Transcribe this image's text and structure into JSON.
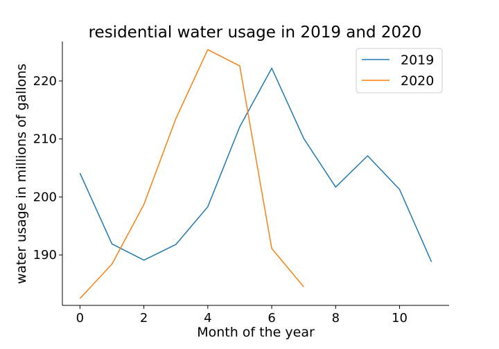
{
  "chart_data": {
    "type": "line",
    "title": "residential water usage in 2019 and 2020",
    "xlabel": "Month of the year",
    "ylabel": "water usage in millions of gallons",
    "xlim": [
      -0.55,
      11.55
    ],
    "ylim": [
      181.3,
      226.8
    ],
    "xticks": [
      0,
      2,
      4,
      6,
      8,
      10
    ],
    "yticks": [
      190,
      200,
      210,
      220
    ],
    "grid": false,
    "legend_position": "top-right",
    "series": [
      {
        "name": "2019",
        "color": "#1f77b4",
        "x": [
          0,
          1,
          2,
          3,
          4,
          5,
          6,
          7,
          8,
          9,
          10,
          11
        ],
        "values": [
          204.1,
          191.9,
          189.1,
          191.8,
          198.3,
          212.1,
          222.2,
          210.1,
          201.7,
          207.1,
          201.3,
          188.8
        ]
      },
      {
        "name": "2020",
        "color": "#ff7f0e",
        "x": [
          0,
          1,
          2,
          3,
          4,
          5,
          6,
          7
        ],
        "values": [
          182.5,
          188.4,
          198.7,
          213.5,
          225.4,
          222.6,
          191.1,
          184.5
        ]
      }
    ]
  }
}
